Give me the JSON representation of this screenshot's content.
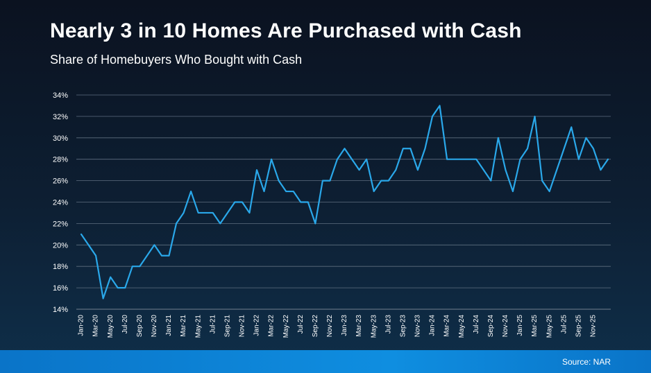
{
  "title": "Nearly 3 in 10 Homes Are Purchased with Cash",
  "subtitle": "Share of Homebuyers Who Bought with Cash",
  "source": "Source: NAR",
  "colors": {
    "line": "#2aa8ea",
    "grid": "#5f6f80",
    "text": "#ffffff"
  },
  "chart_data": {
    "type": "line",
    "title": "Nearly 3 in 10 Homes Are Purchased with Cash",
    "subtitle": "Share of Homebuyers Who Bought with Cash",
    "xlabel": "",
    "ylabel": "",
    "ylim": [
      14,
      34
    ],
    "yticks": [
      "14%",
      "16%",
      "18%",
      "20%",
      "22%",
      "24%",
      "26%",
      "28%",
      "30%",
      "32%",
      "34%"
    ],
    "grid": true,
    "x_tick_labels": [
      "Jan-20",
      "Mar-20",
      "May-20",
      "Jul-20",
      "Sep-20",
      "Nov-20",
      "Jan-21",
      "Mar-21",
      "May-21",
      "Jul-21",
      "Sep-21",
      "Nov-21",
      "Jan-22",
      "Mar-22",
      "May-22",
      "Jul-22",
      "Sep-22",
      "Nov-22",
      "Jan-23",
      "Mar-23",
      "May-23",
      "Jul-23",
      "Sep-23",
      "Nov-23",
      "Jan-24",
      "Mar-24",
      "May-24",
      "Jul-24",
      "Sep-24",
      "Nov-24",
      "Jan-25",
      "Mar-25",
      "May-25",
      "Jul-25",
      "Sep-25",
      "Nov-25"
    ],
    "values": [
      21,
      20,
      19,
      15,
      17,
      16,
      16,
      18,
      18,
      19,
      20,
      19,
      19,
      22,
      23,
      25,
      23,
      23,
      23,
      22,
      23,
      24,
      24,
      23,
      27,
      25,
      28,
      26,
      25,
      25,
      24,
      24,
      22,
      26,
      26,
      28,
      29,
      28,
      27,
      28,
      25,
      26,
      26,
      27,
      29,
      29,
      27,
      29,
      32,
      33,
      28,
      28,
      28,
      28,
      28,
      27,
      26,
      30,
      27,
      25,
      28,
      29,
      32,
      26,
      25,
      27,
      29,
      31,
      28,
      30,
      29,
      27,
      28
    ]
  }
}
